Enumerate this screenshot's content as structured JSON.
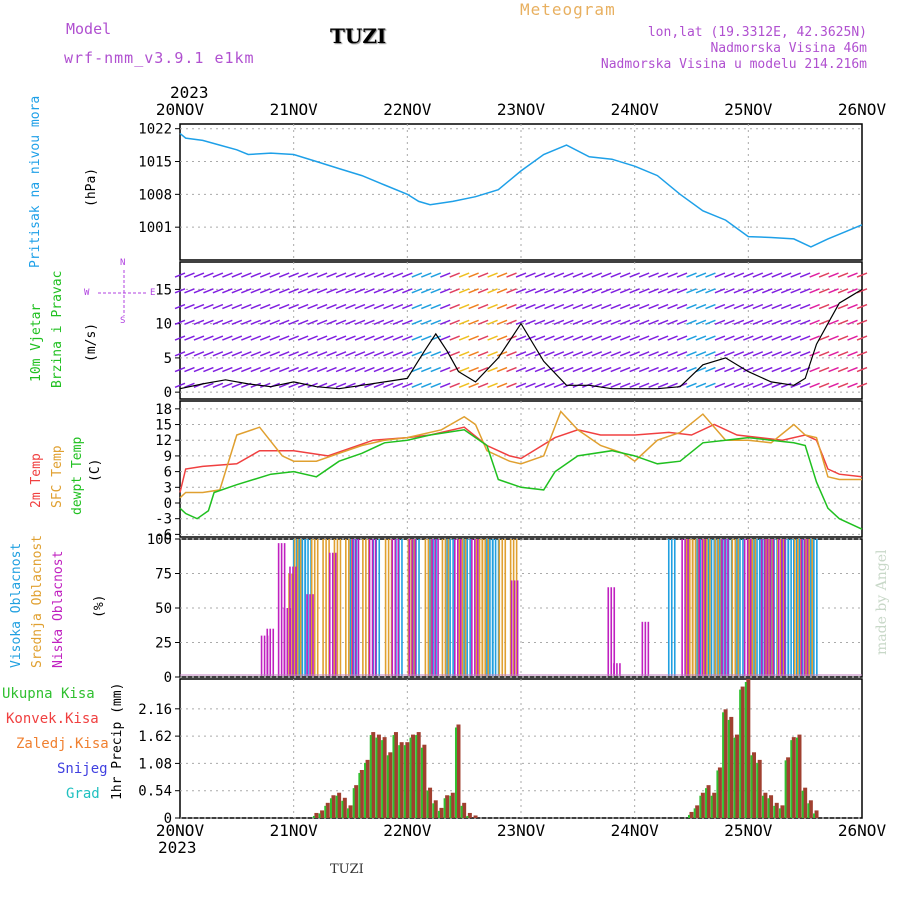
{
  "header": {
    "model_label": "Model",
    "model_name": "wrf-nmm_v3.9.1 e1km",
    "station": "TUZI",
    "meteogram": "Meteogram",
    "lonlat": "lon,lat (19.3312E, 42.3625N)",
    "elev": "Nadmorska Visina 46m",
    "elev_model": "Nadmorska Visina u modelu 214.216m",
    "footer_station": "TUZI",
    "credit": "made by Angel",
    "year_top": "2023",
    "year_bottom": "2023"
  },
  "colors": {
    "pressure": "#1ea0e8",
    "temp2m": "#f04040",
    "sfc": "#e0a030",
    "dewpt": "#20c020",
    "high": "#20a0e0",
    "mid": "#e0a030",
    "low": "#c020c0",
    "precip_total": "#30c030",
    "precip_conv": "#a04030",
    "wind_label": "#20c020",
    "dir": "#b040e0"
  },
  "chart_data": [
    {
      "type": "line",
      "title": "",
      "ylabel_lines": [
        "Pritisak na nivou mora",
        "(hPa)"
      ],
      "xticks": [
        "20NOV",
        "21NOV",
        "22NOV",
        "23NOV",
        "24NOV",
        "25NOV",
        "26NOV"
      ],
      "yticks": [
        "1001",
        "1008",
        "1015",
        "1022"
      ],
      "ylim": [
        994,
        1023
      ],
      "series": [
        {
          "x": [
            0,
            0.05,
            0.2,
            0.35,
            0.5,
            0.6,
            0.8,
            1,
            1.2,
            1.4,
            1.6,
            1.8,
            2,
            2.1,
            2.2,
            2.4,
            2.6,
            2.8,
            3,
            3.2,
            3.4,
            3.6,
            3.8,
            4,
            4.2,
            4.4,
            4.6,
            4.8,
            5,
            5.2,
            5.4,
            5.55,
            5.7,
            5.85,
            6
          ],
          "y": [
            1021,
            1020,
            1019.5,
            1018.5,
            1017.5,
            1016.5,
            1016.8,
            1016.5,
            1015,
            1013.5,
            1012,
            1010,
            1008,
            1006.5,
            1005.8,
            1006.5,
            1007.5,
            1009,
            1013,
            1016.5,
            1018.5,
            1016,
            1015.5,
            1014,
            1012,
            1008,
            1004.5,
            1002.5,
            999,
            998.8,
            998.5,
            996.8,
            998.5,
            1000,
            1001.5
          ]
        }
      ]
    },
    {
      "type": "line",
      "title": "",
      "ylabel_lines": [
        "10m Vjetar",
        "Brzina i Pravac",
        "(m/s)"
      ],
      "compass": {
        "n": "N",
        "s": "S",
        "e": "E",
        "w": "W"
      },
      "yticks": [
        "0",
        "5",
        "10",
        "15"
      ],
      "ylim": [
        -1,
        19
      ],
      "series": [
        {
          "x": [
            0,
            0.2,
            0.4,
            0.6,
            0.8,
            1,
            1.2,
            1.4,
            1.6,
            1.8,
            2,
            2.15,
            2.25,
            2.35,
            2.45,
            2.6,
            2.8,
            3,
            3.2,
            3.4,
            3.6,
            3.8,
            4,
            4.2,
            4.4,
            4.6,
            4.8,
            5,
            5.2,
            5.4,
            5.5,
            5.6,
            5.7,
            5.8,
            5.9,
            6
          ],
          "y": [
            0.5,
            1.2,
            1.8,
            1.2,
            0.8,
            1.5,
            0.8,
            0.5,
            1,
            1.5,
            2,
            6,
            8.5,
            6,
            3,
            1.5,
            5,
            10,
            4.5,
            1,
            1,
            0.5,
            0.5,
            0.5,
            0.8,
            4,
            5,
            3,
            1.5,
            1,
            2,
            7,
            10,
            13,
            14,
            15
          ]
        }
      ]
    },
    {
      "type": "line",
      "title": "",
      "ylabel_lines": [
        "2m Temp",
        "SFC Temp",
        "dewpt Temp",
        "(C)"
      ],
      "yticks": [
        "-6",
        "-3",
        "0",
        "3",
        "6",
        "9",
        "12",
        "15",
        "18"
      ],
      "ylim": [
        -6.5,
        19.5
      ],
      "series": [
        {
          "name": "2m Temp",
          "x": [
            0,
            0.05,
            0.2,
            0.5,
            0.7,
            1,
            1.3,
            1.5,
            1.7,
            2,
            2.2,
            2.5,
            2.7,
            2.9,
            3,
            3.3,
            3.5,
            3.7,
            4,
            4.3,
            4.5,
            4.7,
            4.9,
            5.1,
            5.3,
            5.5,
            5.6,
            5.7,
            5.8,
            6
          ],
          "y": [
            2,
            6.5,
            7,
            7.5,
            10,
            10,
            9,
            10.5,
            12,
            12.5,
            13,
            14.5,
            11,
            9,
            8.5,
            12.5,
            14,
            13,
            13,
            13.5,
            13,
            15,
            13,
            12.5,
            12,
            13,
            12,
            6.5,
            5.5,
            5
          ]
        },
        {
          "name": "SFC Temp",
          "x": [
            0,
            0.05,
            0.2,
            0.35,
            0.5,
            0.7,
            0.9,
            1,
            1.2,
            1.4,
            1.6,
            1.8,
            2,
            2.3,
            2.5,
            2.6,
            2.7,
            2.9,
            3,
            3.2,
            3.35,
            3.5,
            3.7,
            3.9,
            4,
            4.2,
            4.4,
            4.6,
            4.8,
            5,
            5.2,
            5.4,
            5.5,
            5.6,
            5.7,
            5.8,
            6
          ],
          "y": [
            1,
            2,
            2,
            2.5,
            13,
            14.5,
            9,
            8,
            8,
            9.5,
            11,
            12,
            12.5,
            14,
            16.5,
            15,
            10,
            8,
            7.5,
            9,
            17.5,
            14,
            11,
            9.5,
            8,
            12,
            13.5,
            17,
            12,
            12,
            11.5,
            15,
            13,
            12.5,
            5,
            4.5,
            4.5
          ]
        },
        {
          "name": "dewpt Temp",
          "x": [
            0,
            0.05,
            0.15,
            0.25,
            0.3,
            0.5,
            0.8,
            1,
            1.2,
            1.4,
            1.6,
            1.8,
            2,
            2.2,
            2.5,
            2.7,
            2.8,
            3,
            3.2,
            3.3,
            3.5,
            3.8,
            4,
            4.2,
            4.4,
            4.6,
            4.8,
            5,
            5.2,
            5.4,
            5.5,
            5.6,
            5.7,
            5.8,
            6
          ],
          "y": [
            -1,
            -2,
            -3,
            -1.5,
            2,
            3.5,
            5.5,
            6,
            5,
            8,
            9.5,
            11.5,
            12,
            13,
            14,
            11,
            4.5,
            3,
            2.5,
            6,
            9,
            10,
            9,
            7.5,
            8,
            11.5,
            12,
            12.5,
            12,
            11.5,
            11,
            4,
            -1,
            -3,
            -5
          ]
        }
      ]
    },
    {
      "type": "bar",
      "title": "",
      "ylabel_lines": [
        "Visoka Oblacnost",
        "Srednja Oblacnost",
        "Niska Oblacnost",
        "(%)"
      ],
      "yticks": [
        "0",
        "25",
        "50",
        "75",
        "100"
      ],
      "ylim": [
        0,
        100
      ],
      "series": [
        {
          "name": "Visoka Oblacnost",
          "x": [
            1.0,
            1.05,
            1.1,
            1.5,
            1.7,
            1.9,
            2.05,
            2.2,
            2.35,
            2.5,
            2.7,
            2.75,
            4.3,
            4.55,
            4.6,
            4.65,
            4.7,
            4.75,
            4.8,
            4.9,
            5.0,
            5.05,
            5.1,
            5.2,
            5.3,
            5.35,
            5.4,
            5.45,
            5.5,
            5.55
          ],
          "values": [
            100,
            100,
            100,
            100,
            100,
            100,
            100,
            100,
            100,
            100,
            100,
            100,
            100,
            100,
            100,
            100,
            100,
            100,
            100,
            100,
            100,
            100,
            100,
            100,
            100,
            100,
            100,
            100,
            100,
            100
          ]
        },
        {
          "name": "Srednja Oblacnost",
          "x": [
            0.95,
            1.0,
            1.15,
            1.25,
            1.35,
            1.45,
            1.6,
            1.8,
            2.0,
            2.15,
            2.3,
            2.45,
            2.6,
            2.65,
            2.8,
            2.9,
            4.45,
            4.5,
            4.6,
            4.7,
            4.85,
            5.0,
            5.15,
            5.25,
            5.4,
            5.5
          ],
          "values": [
            75,
            100,
            100,
            100,
            100,
            100,
            100,
            100,
            100,
            100,
            100,
            100,
            100,
            100,
            100,
            100,
            100,
            100,
            100,
            100,
            100,
            100,
            100,
            100,
            100,
            100
          ]
        },
        {
          "name": "Niska Oblacnost",
          "x": [
            0.7,
            0.75,
            0.85,
            0.9,
            0.95,
            1.1,
            1.3,
            1.5,
            1.65,
            1.85,
            2.0,
            2.2,
            2.4,
            2.55,
            2.9,
            3.75,
            3.8,
            4.05,
            4.4,
            4.55,
            4.75,
            4.95,
            5.1,
            5.15,
            5.25,
            5.45
          ],
          "values": [
            30,
            35,
            97,
            50,
            80,
            60,
            90,
            100,
            100,
            100,
            100,
            100,
            100,
            100,
            70,
            65,
            10,
            40,
            100,
            100,
            100,
            100,
            100,
            100,
            100,
            100
          ]
        }
      ]
    },
    {
      "type": "bar",
      "title": "",
      "ylabel": "1hr Precip (mm)",
      "legend": [
        "Ukupna Kisa",
        "Konvek.Kisa",
        "Zaledj.Kisa",
        "Snijeg",
        "Grad"
      ],
      "legend_colors": [
        "#30c030",
        "#f04040",
        "#f08030",
        "#4040e0",
        "#20c0c0"
      ],
      "xticks": [
        "20NOV",
        "21NOV",
        "22NOV",
        "23NOV",
        "24NOV",
        "25NOV",
        "26NOV"
      ],
      "yticks": [
        "0",
        "0.54",
        "1.08",
        "1.62",
        "2.16"
      ],
      "ylim": [
        0,
        2.75
      ],
      "x": [
        1.2,
        1.25,
        1.3,
        1.35,
        1.4,
        1.45,
        1.5,
        1.55,
        1.6,
        1.65,
        1.7,
        1.75,
        1.8,
        1.85,
        1.9,
        1.95,
        2.0,
        2.05,
        2.1,
        2.15,
        2.2,
        2.25,
        2.3,
        2.35,
        2.4,
        2.45,
        2.5,
        2.55,
        2.6,
        4.5,
        4.55,
        4.6,
        4.65,
        4.7,
        4.75,
        4.8,
        4.85,
        4.9,
        4.95,
        5.0,
        5.05,
        5.1,
        5.15,
        5.2,
        5.25,
        5.3,
        5.35,
        5.4,
        5.45,
        5.5,
        5.55,
        5.6
      ],
      "values": [
        0.1,
        0.15,
        0.3,
        0.45,
        0.5,
        0.4,
        0.25,
        0.65,
        0.95,
        1.15,
        1.7,
        1.65,
        1.6,
        1.3,
        1.7,
        1.5,
        1.5,
        1.65,
        1.7,
        1.45,
        0.6,
        0.35,
        0.2,
        0.45,
        0.5,
        1.85,
        0.3,
        0.1,
        0.05,
        0.12,
        0.25,
        0.5,
        0.65,
        0.5,
        1.0,
        2.15,
        2.0,
        1.65,
        2.6,
        2.75,
        1.3,
        1.15,
        0.5,
        0.45,
        0.3,
        0.25,
        1.2,
        1.6,
        1.65,
        0.6,
        0.35,
        0.15
      ]
    }
  ]
}
